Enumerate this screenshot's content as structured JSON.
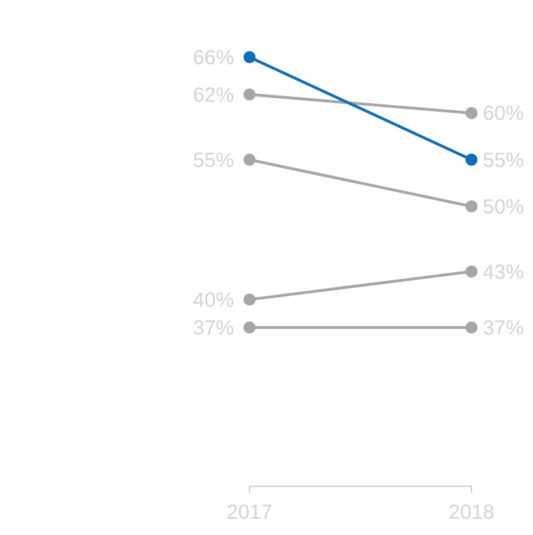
{
  "chart_data": {
    "type": "line",
    "subtype": "slope",
    "categories": [
      "2017",
      "2018"
    ],
    "value_format": "percent",
    "series": [
      {
        "values": [
          66,
          55
        ],
        "start_label": "66%",
        "end_label": "55%",
        "color": "#0a6ebd",
        "highlighted": true
      },
      {
        "values": [
          62,
          60
        ],
        "start_label": "62%",
        "end_label": "60%",
        "color": "#a6a6a6",
        "highlighted": false
      },
      {
        "values": [
          55,
          50
        ],
        "start_label": "55%",
        "end_label": "50%",
        "color": "#a6a6a6",
        "highlighted": false
      },
      {
        "values": [
          40,
          43
        ],
        "start_label": "40%",
        "end_label": "43%",
        "color": "#a6a6a6",
        "highlighted": false
      },
      {
        "values": [
          37,
          37
        ],
        "start_label": "37%",
        "end_label": "37%",
        "color": "#a6a6a6",
        "highlighted": false
      }
    ],
    "label_color": "#d3d3d3",
    "axis_color": "#a6a6a6",
    "grid": false,
    "legend": "none"
  }
}
